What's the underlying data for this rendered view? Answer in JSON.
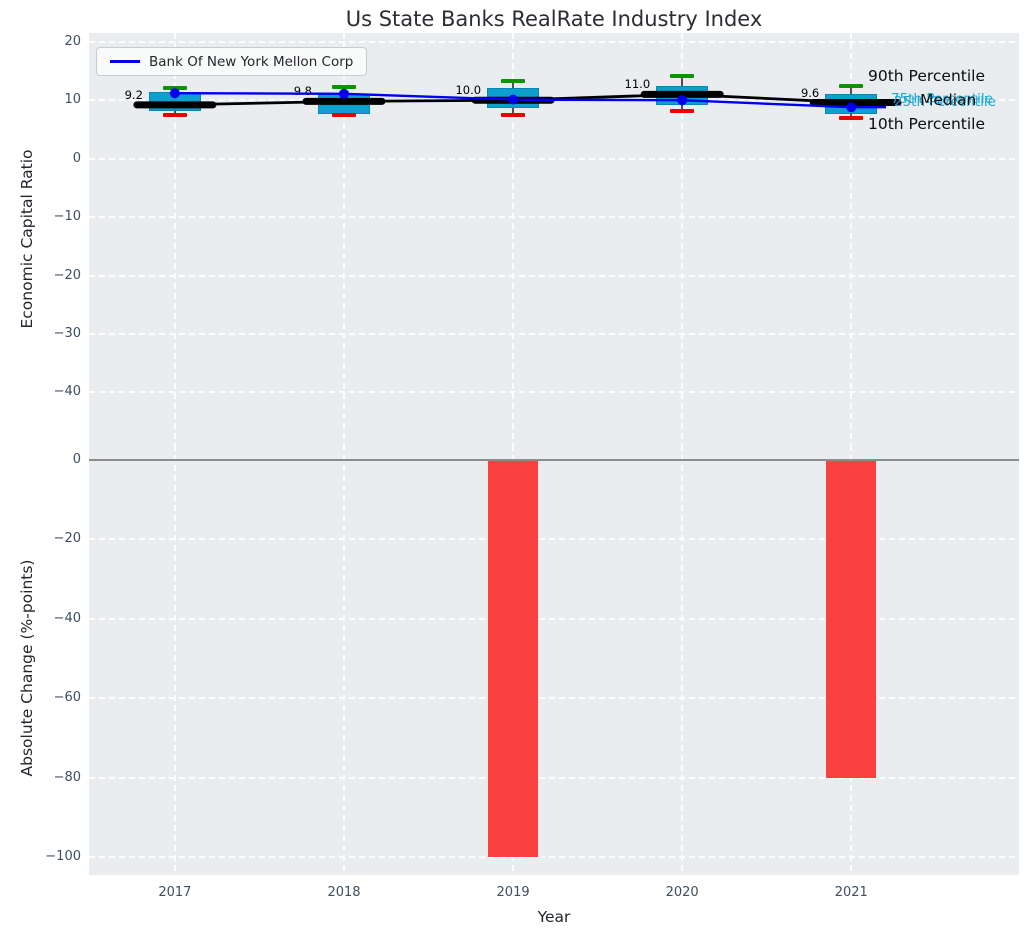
{
  "title": "Us State Banks RealRate Industry Index",
  "legend": {
    "label": "Bank Of New York Mellon Corp",
    "position": "upper left"
  },
  "annotations": {
    "p90": "90th Percentile",
    "p75": "75th Percentile",
    "median": "Median",
    "p25": "25th Percentile",
    "p10": "10th Percentile"
  },
  "colors": {
    "background": "#e9edf0",
    "grid": "#fdfdfd",
    "box": "#0d9fce",
    "cap_top": "#0a9400",
    "cap_bottom": "#ee0000",
    "median_line": "#000000",
    "company_line": "#0000ee",
    "bar": "#fb4040",
    "zero_line": "#8d8d8d",
    "tick": "#3d4f63"
  },
  "chart_data": [
    {
      "type": "boxplot+line",
      "title": "Us State Banks RealRate Industry Index",
      "xlabel": "Year",
      "ylabel": "Economic Capital Ratio",
      "categories": [
        "2017",
        "2018",
        "2019",
        "2020",
        "2021"
      ],
      "yticks": [
        "20",
        "10",
        "0",
        "−10",
        "−20",
        "−30",
        "−40"
      ],
      "ytick_values": [
        20,
        10,
        0,
        -10,
        -20,
        -30,
        -40
      ],
      "ylim": [
        -49,
        21.5
      ],
      "grid": true,
      "legend_position": "upper left",
      "boxes": [
        {
          "year": "2017",
          "p10": 7.4,
          "p25": 8.2,
          "median": 9.2,
          "p75": 11.4,
          "p90": 12.1
        },
        {
          "year": "2018",
          "p10": 7.5,
          "p25": 7.7,
          "median": 9.8,
          "p75": 11.1,
          "p90": 12.3
        },
        {
          "year": "2019",
          "p10": 7.5,
          "p25": 8.6,
          "median": 10.0,
          "p75": 12.1,
          "p90": 13.3
        },
        {
          "year": "2020",
          "p10": 8.2,
          "p25": 9.1,
          "median": 11.0,
          "p75": 12.5,
          "p90": 14.2
        },
        {
          "year": "2021",
          "p10": 7.0,
          "p25": 7.7,
          "median": 9.6,
          "p75": 11.1,
          "p90": 12.5
        }
      ],
      "series": [
        {
          "name": "Median",
          "values": [
            9.2,
            9.8,
            10.0,
            11.0,
            9.6
          ],
          "labels": [
            "9.2",
            "9.8",
            "10.0",
            "11.0",
            "9.6"
          ],
          "color": "#000000"
        },
        {
          "name": "Bank Of New York Mellon Corp",
          "values": [
            11.2,
            11.1,
            10.1,
            10.0,
            8.8
          ],
          "color": "#0000ee"
        }
      ]
    },
    {
      "type": "bar",
      "xlabel": "Year",
      "ylabel": "Absolute Change (%-points)",
      "categories": [
        "2017",
        "2018",
        "2019",
        "2020",
        "2021"
      ],
      "values": [
        0,
        0,
        -100,
        0,
        -80
      ],
      "yticks": [
        "0",
        "−20",
        "−40",
        "−60",
        "−80",
        "−100"
      ],
      "ytick_values": [
        0,
        -20,
        -40,
        -60,
        -80,
        -100
      ],
      "ylim": [
        -104.5,
        3.8
      ],
      "grid": true,
      "bar_color": "#fb4040"
    }
  ]
}
